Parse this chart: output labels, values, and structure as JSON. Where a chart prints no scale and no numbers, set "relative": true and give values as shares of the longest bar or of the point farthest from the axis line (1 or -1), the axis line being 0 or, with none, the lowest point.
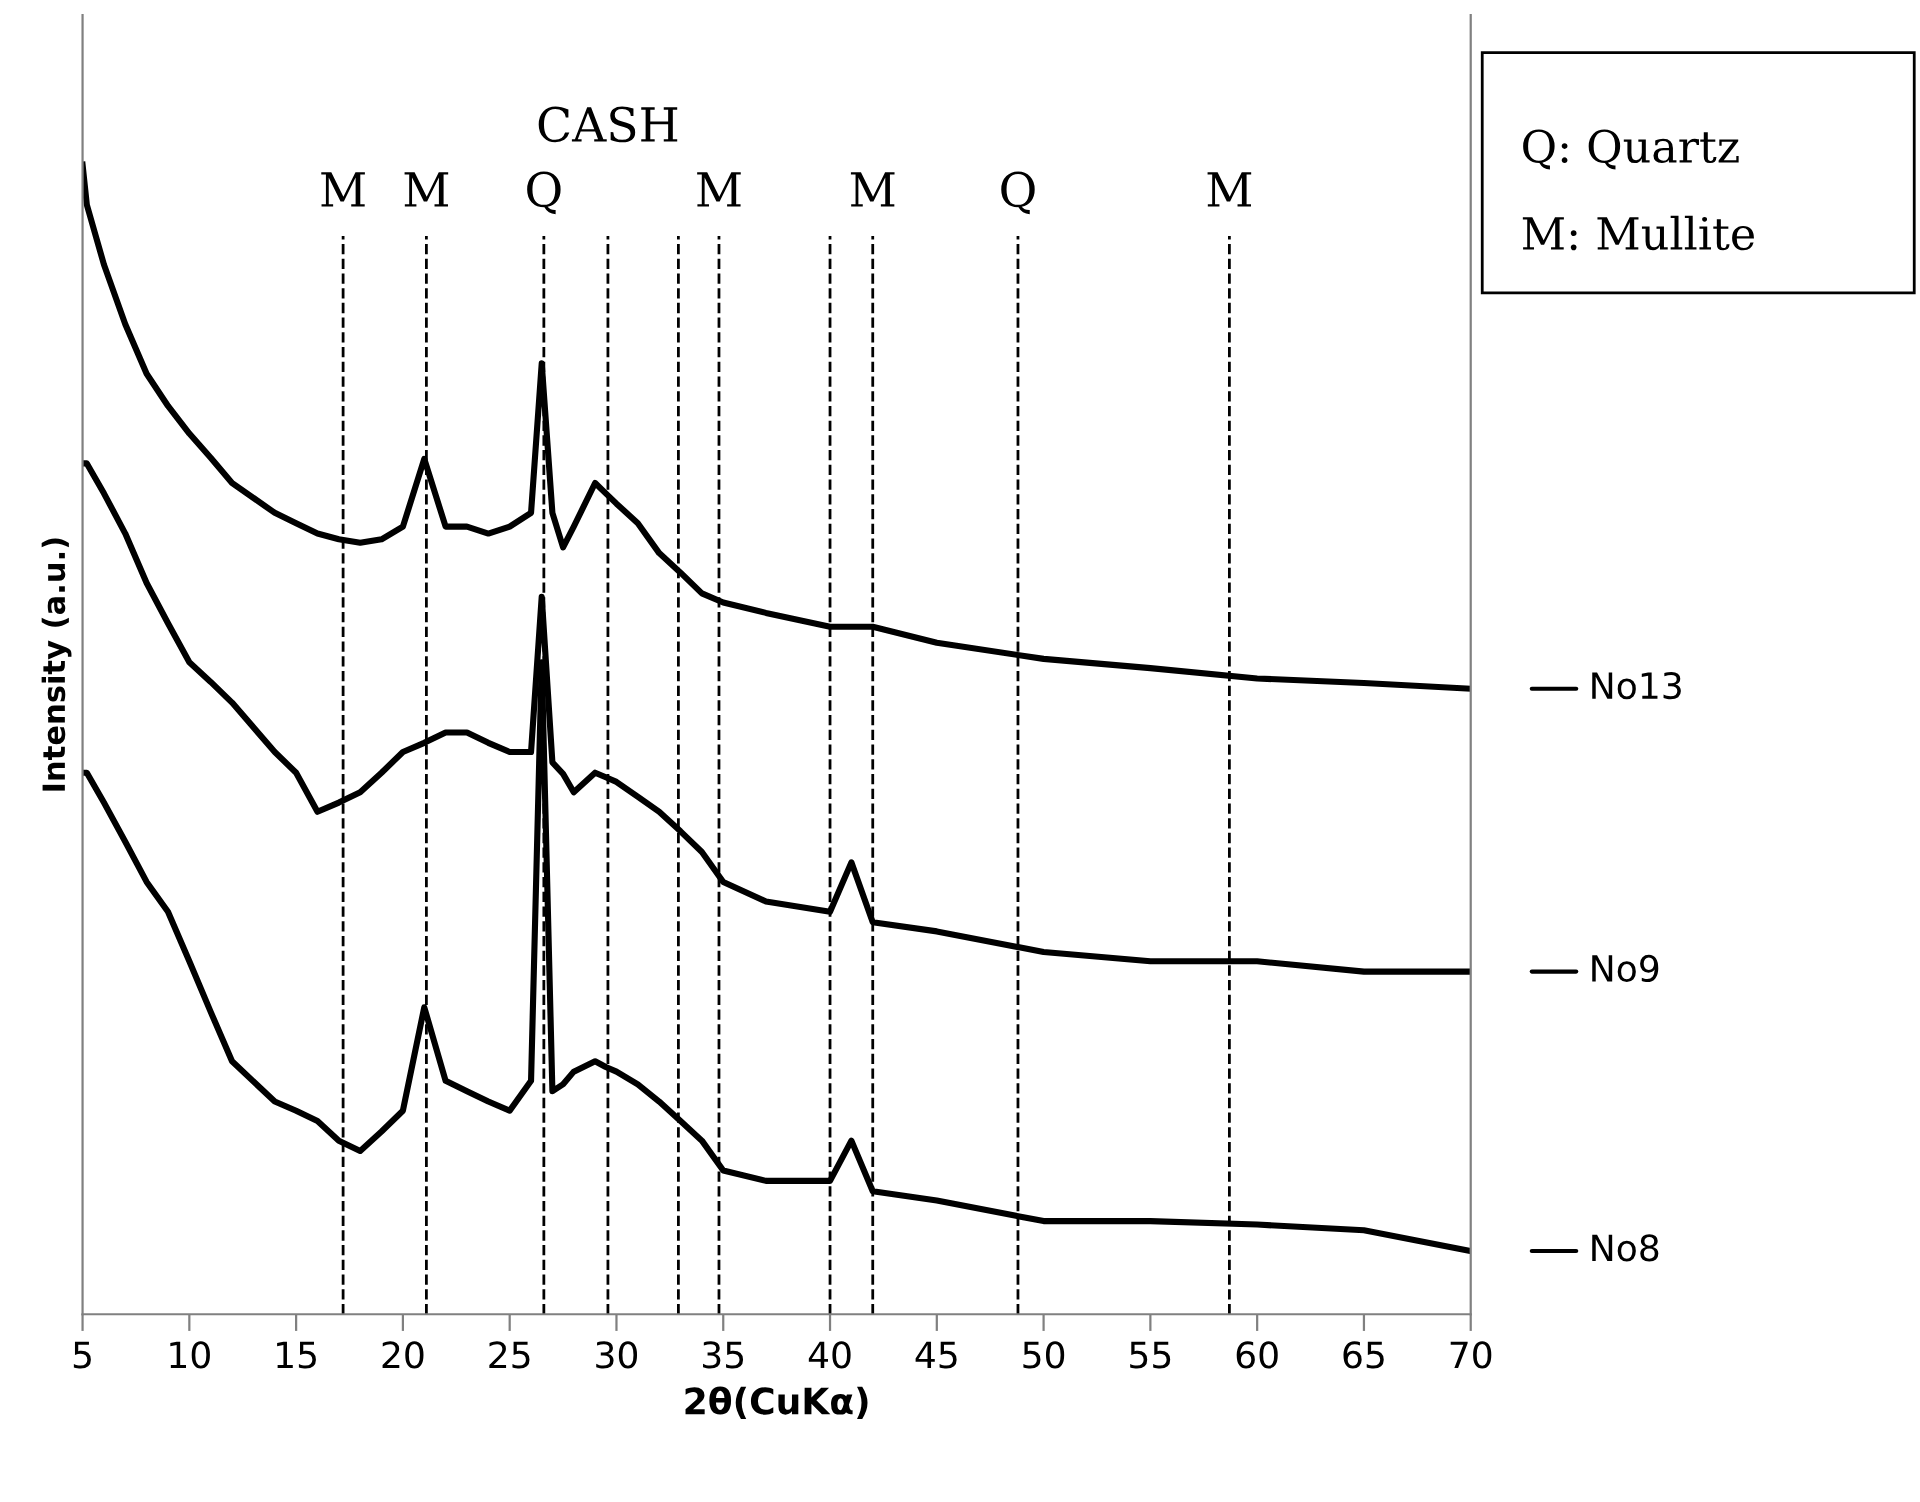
{
  "chart_data": {
    "type": "line",
    "relative": true,
    "xlabel": "2θ(CuKα)",
    "ylabel": "Intensity (a.u.)",
    "xlim": [
      5,
      70
    ],
    "xticks": [
      5,
      10,
      15,
      20,
      25,
      30,
      35,
      40,
      45,
      50,
      55,
      60,
      65,
      70
    ],
    "grid": false,
    "legend": "right",
    "line_style": "solid",
    "marker": "none",
    "x": [
      5,
      5.2,
      6,
      7,
      8,
      9,
      10,
      11,
      12,
      14,
      15,
      16,
      17,
      18,
      19,
      20,
      21,
      22,
      23,
      24,
      25,
      26,
      26.5,
      27,
      27.5,
      28,
      29,
      29.5,
      30,
      31,
      32,
      33,
      34,
      35,
      37,
      40,
      41,
      42,
      45,
      50,
      55,
      60,
      65,
      70
    ],
    "series": [
      {
        "name": "No13",
        "color": "#000000",
        "values": [
          1.0,
          0.965,
          0.913,
          0.861,
          0.818,
          0.79,
          0.766,
          0.745,
          0.723,
          0.697,
          0.688,
          0.679,
          0.674,
          0.671,
          0.674,
          0.685,
          0.744,
          0.685,
          0.685,
          0.679,
          0.685,
          0.697,
          0.827,
          0.697,
          0.667,
          0.685,
          0.723,
          0.714,
          0.705,
          0.688,
          0.662,
          0.645,
          0.627,
          0.619,
          0.61,
          0.598,
          0.598,
          0.598,
          0.584,
          0.57,
          0.562,
          0.553,
          0.549,
          0.544
        ]
      },
      {
        "name": "No9",
        "color": "#000000",
        "values": [
          0.74,
          0.74,
          0.714,
          0.679,
          0.636,
          0.601,
          0.567,
          0.55,
          0.532,
          0.489,
          0.471,
          0.437,
          0.445,
          0.454,
          0.471,
          0.489,
          0.497,
          0.506,
          0.506,
          0.497,
          0.489,
          0.489,
          0.624,
          0.48,
          0.47,
          0.454,
          0.471,
          0.467,
          0.463,
          0.45,
          0.437,
          0.42,
          0.402,
          0.376,
          0.359,
          0.35,
          0.393,
          0.341,
          0.333,
          0.315,
          0.307,
          0.307,
          0.298,
          0.298
        ]
      },
      {
        "name": "No8",
        "color": "#000000",
        "values": [
          0.471,
          0.471,
          0.445,
          0.411,
          0.376,
          0.35,
          0.307,
          0.263,
          0.22,
          0.185,
          0.177,
          0.168,
          0.151,
          0.142,
          0.159,
          0.177,
          0.267,
          0.203,
          0.194,
          0.185,
          0.177,
          0.203,
          0.567,
          0.194,
          0.2,
          0.211,
          0.22,
          0.215,
          0.211,
          0.2,
          0.185,
          0.168,
          0.151,
          0.125,
          0.116,
          0.116,
          0.151,
          0.107,
          0.099,
          0.081,
          0.081,
          0.078,
          0.073,
          0.055
        ]
      }
    ],
    "ref_lines": [
      {
        "axis": "x",
        "value": 17.2,
        "label": "M",
        "line_style": "dashed",
        "color": "#000000"
      },
      {
        "axis": "x",
        "value": 21.1,
        "label": "M",
        "line_style": "dashed",
        "color": "#000000"
      },
      {
        "axis": "x",
        "value": 26.6,
        "label": "Q",
        "line_style": "dashed",
        "color": "#000000"
      },
      {
        "axis": "x",
        "value": 29.6,
        "label": "CASH",
        "line_style": "dashed",
        "color": "#000000"
      },
      {
        "axis": "x",
        "value": 32.9,
        "line_style": "dashed",
        "color": "#000000"
      },
      {
        "axis": "x",
        "value": 34.8,
        "label": "M",
        "line_style": "dashed",
        "color": "#000000"
      },
      {
        "axis": "x",
        "value": 40.0,
        "line_style": "dashed",
        "color": "#000000"
      },
      {
        "axis": "x",
        "value": 42.0,
        "label": "M",
        "line_style": "dashed",
        "color": "#000000"
      },
      {
        "axis": "x",
        "value": 48.8,
        "label": "Q",
        "line_style": "dashed",
        "color": "#000000"
      },
      {
        "axis": "x",
        "value": 58.7,
        "label": "M",
        "line_style": "dashed",
        "color": "#000000"
      }
    ],
    "annotations": [
      "Q: Quartz",
      "M: Mullite"
    ]
  }
}
